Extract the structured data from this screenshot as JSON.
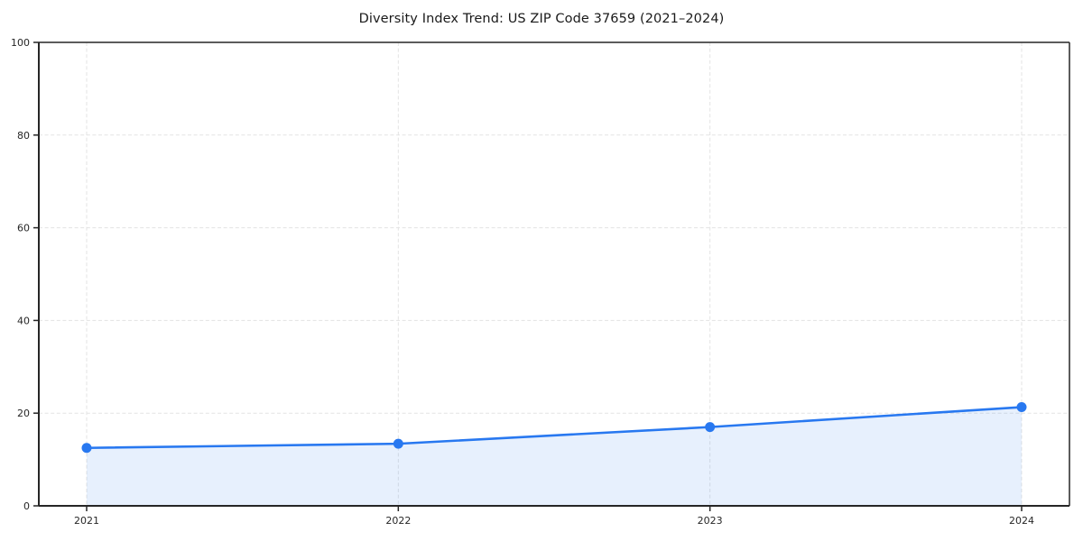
{
  "chart_data": {
    "type": "line",
    "title": "Diversity Index Trend: US ZIP Code 37659 (2021–2024)",
    "categories": [
      "2021",
      "2022",
      "2023",
      "2024"
    ],
    "values": [
      12.5,
      13.4,
      17.0,
      21.3
    ],
    "xlabel": "",
    "ylabel": "",
    "ylim": [
      0,
      100
    ],
    "yticks": [
      0,
      20,
      40,
      60,
      80,
      100
    ],
    "grid": "dashed-both-axes",
    "legend": "none",
    "area_fill": true,
    "marker": "circle",
    "colors": {
      "line": "#2878f0",
      "marker": "#2878f0",
      "area": "#2878f0",
      "area_opacity": 0.11,
      "grid": "#e3e3e3",
      "spine": "#262626",
      "tick_text": "#262626",
      "title_text": "#1a1a1a",
      "background": "#ffffff"
    }
  }
}
